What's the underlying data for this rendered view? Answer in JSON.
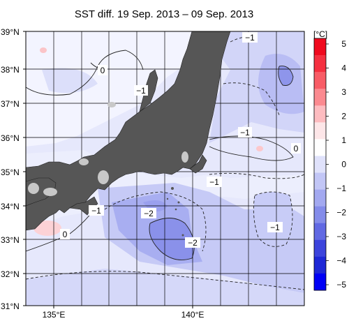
{
  "title": "SST diff. 19 Sep. 2013 – 09 Sep. 2013",
  "unit": "[°C]",
  "lat_labels": [
    "39°N",
    "38°N",
    "37°N",
    "36°N",
    "35°N",
    "34°N",
    "33°N",
    "32°N",
    "31°N"
  ],
  "lon_labels": [
    "135°E",
    "140°E"
  ],
  "colorbar": {
    "ticks": [
      "5",
      "4",
      "3",
      "2",
      "1",
      "0",
      "−1",
      "−2",
      "−3",
      "−4",
      "−5"
    ],
    "colors": [
      "#f00a1e",
      "#f53040",
      "#f85c66",
      "#fb8a90",
      "#fdbcc0",
      "#fde6e8",
      "#ffffff",
      "#e0e2fb",
      "#c2c6f6",
      "#a3a9f0",
      "#848cea",
      "#6169e3",
      "#3c44dc",
      "#1e28d6",
      "#0000f5"
    ]
  },
  "contour_labels": [
    "0",
    "−1",
    "−1",
    "−1",
    "0",
    "−1",
    "−1",
    "−2",
    "−2",
    "−1",
    "0"
  ]
}
